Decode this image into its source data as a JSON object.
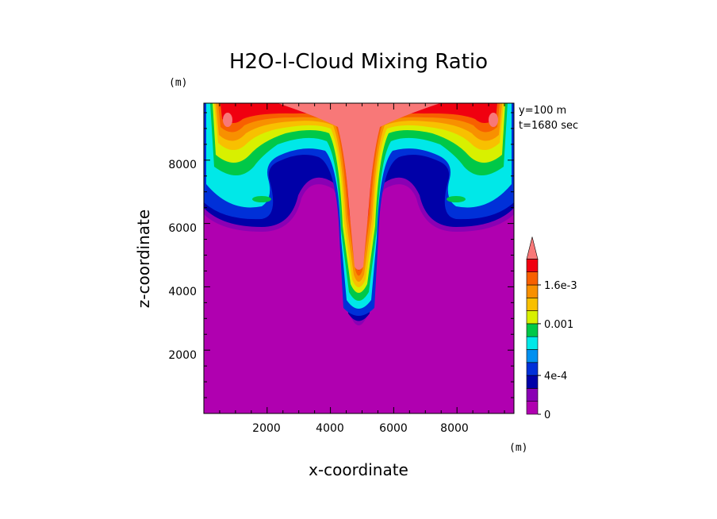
{
  "chart_data": {
    "type": "heatmap",
    "title": "H2O-l-Cloud Mixing Ratio",
    "xlabel": "x-coordinate",
    "ylabel": "z-coordinate",
    "x_unit": "(m)",
    "y_unit": "(m)",
    "xlim": [
      0,
      9800
    ],
    "ylim": [
      0,
      9800
    ],
    "xticks": [
      "2000",
      "4000",
      "6000",
      "8000"
    ],
    "yticks": [
      "2000",
      "4000",
      "6000",
      "8000"
    ],
    "annotations": [
      "y=100 m",
      "t=1680 sec"
    ],
    "colorbar": {
      "tick_labels": [
        "0",
        "4e-4",
        "0.001",
        "1.6e-3"
      ],
      "levels": [
        0,
        0.0001,
        0.0002,
        0.0004,
        0.0005,
        0.0007,
        0.0009,
        0.0011,
        0.0013,
        0.0014,
        0.0016,
        0.0018
      ],
      "colors": [
        "#b000b0",
        "#8a00b4",
        "#0000a8",
        "#0030d8",
        "#0090f0",
        "#00e8e8",
        "#00c848",
        "#d8f000",
        "#f8c000",
        "#f89000",
        "#f86000",
        "#f00010",
        "#f87878"
      ],
      "extend": "max"
    }
  }
}
